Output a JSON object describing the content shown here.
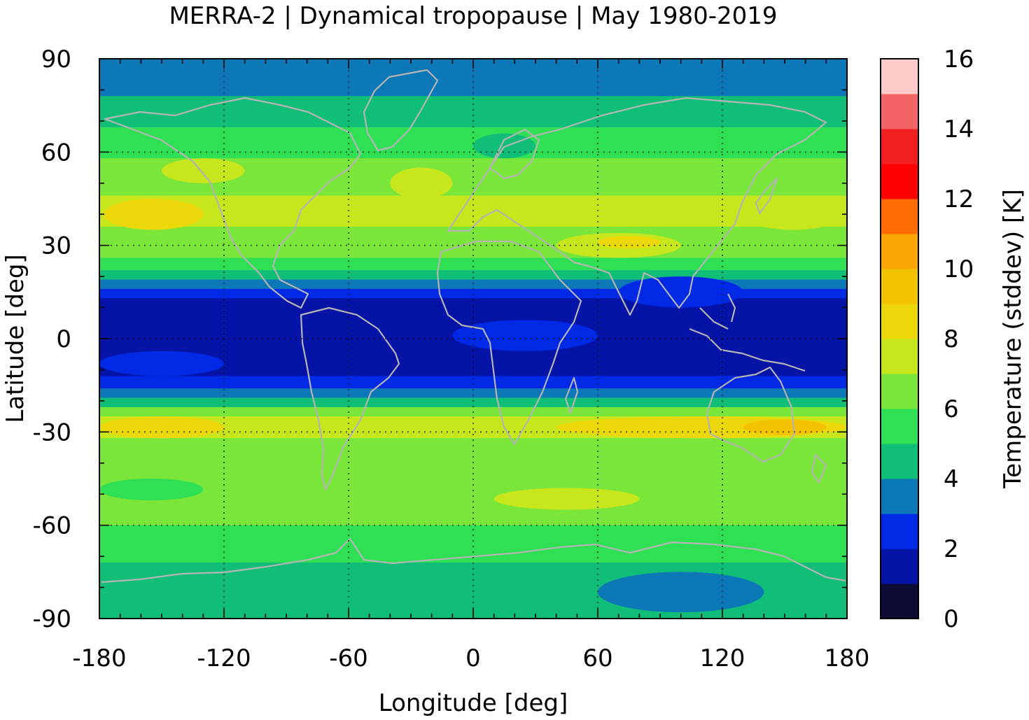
{
  "chart_data": {
    "type": "heatmap",
    "title": "MERRA-2 | Dynamical tropopause | May 1980-2019",
    "xlabel": "Longitude [deg]",
    "ylabel": "Latitude [deg]",
    "xlim": [
      -180,
      180
    ],
    "ylim": [
      -90,
      90
    ],
    "x_ticks": [
      "-180",
      "-120",
      "-60",
      "0",
      "60",
      "120",
      "180"
    ],
    "y_ticks": [
      "90",
      "60",
      "30",
      "0",
      "-30",
      "-60",
      "-90"
    ],
    "grid": true,
    "colorbar": {
      "label": "Temperature (stddev) [K]",
      "range": [
        0,
        16
      ],
      "ticks": [
        "0",
        "2",
        "4",
        "6",
        "8",
        "10",
        "12",
        "14",
        "16"
      ],
      "levels": [
        {
          "from": 0,
          "to": 1,
          "color": "#0b0b35"
        },
        {
          "from": 1,
          "to": 2,
          "color": "#0514a6"
        },
        {
          "from": 2,
          "to": 3,
          "color": "#0029e6"
        },
        {
          "from": 3,
          "to": 4,
          "color": "#0c78b8"
        },
        {
          "from": 4,
          "to": 5,
          "color": "#10be78"
        },
        {
          "from": 5,
          "to": 6,
          "color": "#2fe055"
        },
        {
          "from": 6,
          "to": 7,
          "color": "#7be63a"
        },
        {
          "from": 7,
          "to": 8,
          "color": "#c8e61c"
        },
        {
          "from": 8,
          "to": 9,
          "color": "#ecd80a"
        },
        {
          "from": 9,
          "to": 10,
          "color": "#f3c200"
        },
        {
          "from": 10,
          "to": 11,
          "color": "#f9a600"
        },
        {
          "from": 11,
          "to": 12,
          "color": "#ff6c00"
        },
        {
          "from": 12,
          "to": 13,
          "color": "#ff0000"
        },
        {
          "from": 13,
          "to": 14,
          "color": "#f02020"
        },
        {
          "from": 14,
          "to": 15,
          "color": "#f36464"
        },
        {
          "from": 15,
          "to": 16,
          "color": "#ffcaca"
        }
      ]
    },
    "zonal_bands": [
      {
        "lat_from": 90,
        "lat_to": 78,
        "value": 3.5
      },
      {
        "lat_from": 78,
        "lat_to": 68,
        "value": 4.5
      },
      {
        "lat_from": 68,
        "lat_to": 58,
        "value": 5.5
      },
      {
        "lat_from": 58,
        "lat_to": 46,
        "value": 6.5
      },
      {
        "lat_from": 46,
        "lat_to": 36,
        "value": 7.5
      },
      {
        "lat_from": 36,
        "lat_to": 26,
        "value": 6.5
      },
      {
        "lat_from": 26,
        "lat_to": 22,
        "value": 5.5
      },
      {
        "lat_from": 22,
        "lat_to": 19,
        "value": 4.5
      },
      {
        "lat_from": 19,
        "lat_to": 16,
        "value": 3.5
      },
      {
        "lat_from": 16,
        "lat_to": 13,
        "value": 2.5
      },
      {
        "lat_from": 13,
        "lat_to": -12,
        "value": 1.5
      },
      {
        "lat_from": -12,
        "lat_to": -16,
        "value": 2.5
      },
      {
        "lat_from": -16,
        "lat_to": -19,
        "value": 3.5
      },
      {
        "lat_from": -19,
        "lat_to": -22,
        "value": 4.5
      },
      {
        "lat_from": -22,
        "lat_to": -25,
        "value": 6.5
      },
      {
        "lat_from": -25,
        "lat_to": -32,
        "value": 7.5
      },
      {
        "lat_from": -32,
        "lat_to": -38,
        "value": 6.5
      },
      {
        "lat_from": -38,
        "lat_to": -60,
        "value": 6.5
      },
      {
        "lat_from": -60,
        "lat_to": -72,
        "value": 5.5
      },
      {
        "lat_from": -72,
        "lat_to": -90,
        "value": 4.5
      }
    ],
    "patches": [
      {
        "lon": [
          -178,
          -130
        ],
        "lat": [
          45,
          35
        ],
        "value": 8.5
      },
      {
        "lon": [
          -40,
          -10
        ],
        "lat": [
          55,
          45
        ],
        "value": 7.5
      },
      {
        "lon": [
          -150,
          -110
        ],
        "lat": [
          58,
          50
        ],
        "value": 7.5
      },
      {
        "lon": [
          40,
          100
        ],
        "lat": [
          34,
          26
        ],
        "value": 7.5
      },
      {
        "lon": [
          60,
          90
        ],
        "lat": [
          33,
          29
        ],
        "value": 8.5
      },
      {
        "lon": [
          130,
          178
        ],
        "lat": [
          45,
          35
        ],
        "value": 7.5
      },
      {
        "lon": [
          0,
          30
        ],
        "lat": [
          66,
          58
        ],
        "value": 4.5
      },
      {
        "lon": [
          -180,
          -120
        ],
        "lat": [
          -25,
          -32
        ],
        "value": 8.5
      },
      {
        "lon": [
          40,
          180
        ],
        "lat": [
          -25,
          -32
        ],
        "value": 8.5
      },
      {
        "lon": [
          130,
          170
        ],
        "lat": [
          -26,
          -31
        ],
        "value": 9.5
      },
      {
        "lon": [
          10,
          80
        ],
        "lat": [
          -48,
          -55
        ],
        "value": 7.5
      },
      {
        "lon": [
          -180,
          -130
        ],
        "lat": [
          -45,
          -52
        ],
        "value": 5.5
      },
      {
        "lon": [
          60,
          140
        ],
        "lat": [
          -75,
          -88
        ],
        "value": 3.5
      },
      {
        "lon": [
          -10,
          60
        ],
        "lat": [
          6,
          -4
        ],
        "value": 2.5
      },
      {
        "lon": [
          -180,
          -120
        ],
        "lat": [
          -4,
          -12
        ],
        "value": 2.5
      },
      {
        "lon": [
          70,
          130
        ],
        "lat": [
          20,
          10
        ],
        "value": 2.5
      }
    ]
  }
}
